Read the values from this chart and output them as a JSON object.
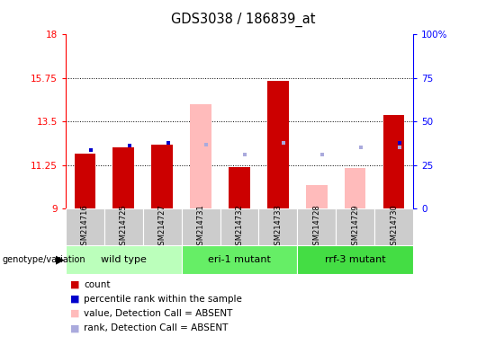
{
  "title": "GDS3038 / 186839_at",
  "samples": [
    "GSM214716",
    "GSM214725",
    "GSM214727",
    "GSM214731",
    "GSM214732",
    "GSM214733",
    "GSM214728",
    "GSM214729",
    "GSM214730"
  ],
  "groups": [
    {
      "label": "wild type",
      "indices": [
        0,
        1,
        2
      ],
      "color": "#bbffbb"
    },
    {
      "label": "eri-1 mutant",
      "indices": [
        3,
        4,
        5
      ],
      "color": "#66ee66"
    },
    {
      "label": "rrf-3 mutant",
      "indices": [
        6,
        7,
        8
      ],
      "color": "#44dd44"
    }
  ],
  "y_min": 9,
  "y_max": 18,
  "y_ticks": [
    9,
    11.25,
    13.5,
    15.75,
    18
  ],
  "y_tick_labels": [
    "9",
    "11.25",
    "13.5",
    "15.75",
    "18"
  ],
  "y2_ticks": [
    0,
    25,
    50,
    75,
    100
  ],
  "y2_tick_labels": [
    "0",
    "25",
    "50",
    "75",
    "100%"
  ],
  "count_values": [
    11.85,
    12.15,
    12.3,
    null,
    11.17,
    15.6,
    null,
    null,
    13.85
  ],
  "count_absent_values": [
    null,
    null,
    null,
    14.4,
    null,
    null,
    10.2,
    11.1,
    null
  ],
  "rank_values": [
    12.05,
    12.25,
    12.38,
    null,
    null,
    12.38,
    null,
    null,
    12.38
  ],
  "rank_absent_values": [
    null,
    null,
    null,
    12.3,
    11.82,
    12.38,
    11.82,
    12.18,
    12.18
  ],
  "bar_bottom": 9,
  "count_color": "#cc0000",
  "count_absent_color": "#ffbbbb",
  "rank_color": "#0000cc",
  "rank_absent_color": "#aaaadd",
  "legend_items": [
    {
      "color": "#cc0000",
      "label": "count"
    },
    {
      "color": "#0000cc",
      "label": "percentile rank within the sample"
    },
    {
      "color": "#ffbbbb",
      "label": "value, Detection Call = ABSENT"
    },
    {
      "color": "#aaaadd",
      "label": "rank, Detection Call = ABSENT"
    }
  ]
}
